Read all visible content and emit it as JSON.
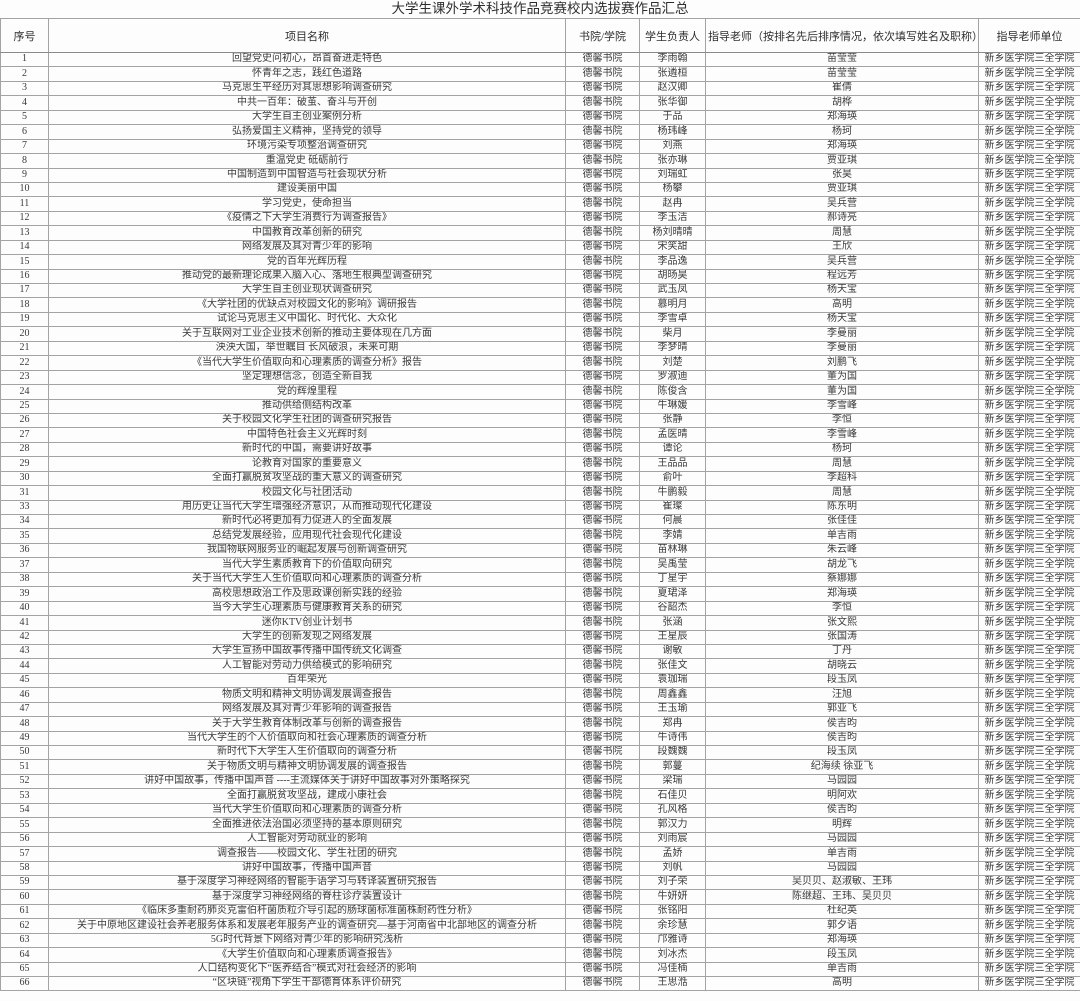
{
  "title": "大学生课外学术科技作品竞赛校内选拔赛作品汇总",
  "table": {
    "headers": {
      "serial": "序号",
      "project": "项目名称",
      "college": "书院/学院",
      "student": "学生负责人",
      "advisor": "指导老师（按排名先后排序情况，依次填写姓名及职称）",
      "unit": "指导老师单位"
    },
    "rows": [
      [
        "1",
        "回望党史问初心，昂首奋进走特色",
        "德馨书院",
        "李雨翰",
        "苗莹莹",
        "新乡医学院三全学院"
      ],
      [
        "2",
        "怀青年之志，践红色道路",
        "德馨书院",
        "张遴桓",
        "苗莹莹",
        "新乡医学院三全学院"
      ],
      [
        "3",
        "马克思生平经历对其思想影响调查研究",
        "德馨书院",
        "赵汉卿",
        "崔倩",
        "新乡医学院三全学院"
      ],
      [
        "4",
        "中共一百年：破茧、奋斗与开创",
        "德馨书院",
        "张华御",
        "胡桦",
        "新乡医学院三全学院"
      ],
      [
        "5",
        "大学生自主创业案例分析",
        "德馨书院",
        "于品",
        "郑海瑛",
        "新乡医学院三全学院"
      ],
      [
        "6",
        "弘扬爱国主义精神，坚持党的领导",
        "德馨书院",
        "杨玮峰",
        "杨珂",
        "新乡医学院三全学院"
      ],
      [
        "7",
        "环境污染专项整治调查研究",
        "德馨书院",
        "刘燕",
        "郑海瑛",
        "新乡医学院三全学院"
      ],
      [
        "8",
        "重温党史 砥砺前行",
        "德馨书院",
        "张亦琳",
        "贾亚琪",
        "新乡医学院三全学院"
      ],
      [
        "9",
        "中国制造到中国智造与社会现状分析",
        "德馨书院",
        "刘瑞虹",
        "张昊",
        "新乡医学院三全学院"
      ],
      [
        "10",
        "建设美丽中国",
        "德馨书院",
        "杨攀",
        "贾亚琪",
        "新乡医学院三全学院"
      ],
      [
        "11",
        "学习党史，使命担当",
        "德馨书院",
        "赵冉",
        "吴兵营",
        "新乡医学院三全学院"
      ],
      [
        "12",
        "《疫情之下大学生消费行为调查报告》",
        "德馨书院",
        "李玉洁",
        "郝诗亮",
        "新乡医学院三全学院"
      ],
      [
        "13",
        "中国教育改革创新的研究",
        "德馨书院",
        "杨刘晴晴",
        "周慧",
        "新乡医学院三全学院"
      ],
      [
        "14",
        "网络发展及其对青少年的影响",
        "德馨书院",
        "宋笑甜",
        "王欣",
        "新乡医学院三全学院"
      ],
      [
        "15",
        "党的百年光辉历程",
        "德馨书院",
        "李品逸",
        "吴兵营",
        "新乡医学院三全学院"
      ],
      [
        "16",
        "推动党的最新理论成果入脑入心、落地生根典型调查研究",
        "德馨书院",
        "胡旸昊",
        "程远芳",
        "新乡医学院三全学院"
      ],
      [
        "17",
        "大学生自主创业现状调查研究",
        "德馨书院",
        "武玉凤",
        "杨天宝",
        "新乡医学院三全学院"
      ],
      [
        "18",
        "《大学社团的优缺点对校园文化的影响》调研报告",
        "德馨书院",
        "慕明月",
        "高明",
        "新乡医学院三全学院"
      ],
      [
        "19",
        "试论马克思主义中国化、时代化、大众化",
        "德馨书院",
        "李雪卓",
        "杨天宝",
        "新乡医学院三全学院"
      ],
      [
        "20",
        "关于互联网对工业企业技术创新的推动主要体现在几方面",
        "德馨书院",
        "柴月",
        "李曼丽",
        "新乡医学院三全学院"
      ],
      [
        "21",
        "泱泱大国，举世瞩目 长风破浪，未来可期",
        "德馨书院",
        "李梦晴",
        "李曼丽",
        "新乡医学院三全学院"
      ],
      [
        "22",
        "《当代大学生价值取向和心理素质的调查分析》报告",
        "德馨书院",
        "刘楚",
        "刘鹏飞",
        "新乡医学院三全学院"
      ],
      [
        "23",
        "坚定理想信念，创造全新自我",
        "德馨书院",
        "罗淑迪",
        "董为国",
        "新乡医学院三全学院"
      ],
      [
        "24",
        "党的辉煌里程",
        "德馨书院",
        "陈俊含",
        "董为国",
        "新乡医学院三全学院"
      ],
      [
        "25",
        "推动供给侧结构改革",
        "德馨书院",
        "牛琳媛",
        "李雪峰",
        "新乡医学院三全学院"
      ],
      [
        "26",
        "关于校园文化学生社团的调查研究报告",
        "德馨书院",
        "张静",
        "李恒",
        "新乡医学院三全学院"
      ],
      [
        "27",
        "中国特色社会主义光辉时刻",
        "德馨书院",
        "孟医晴",
        "李雪峰",
        "新乡医学院三全学院"
      ],
      [
        "28",
        "新时代的中国，需要讲好故事",
        "德馨书院",
        "谭论",
        "杨珂",
        "新乡医学院三全学院"
      ],
      [
        "29",
        "论教育对国家的重要意义",
        "德馨书院",
        "王品品",
        "周慧",
        "新乡医学院三全学院"
      ],
      [
        "30",
        "全面打赢脱贫攻坚战的重大意义的调查研究",
        "德馨书院",
        "俞叶",
        "李超科",
        "新乡医学院三全学院"
      ],
      [
        "31",
        "校园文化与社团活动",
        "德馨书院",
        "牛鹏毅",
        "周慧",
        "新乡医学院三全学院"
      ],
      [
        "33",
        "用历史让当代大学生增强经济意识，从而推动现代化建设",
        "德馨书院",
        "崔璨",
        "陈东明",
        "新乡医学院三全学院"
      ],
      [
        "34",
        "新时代必将更加有力促进人的全面发展",
        "德馨书院",
        "何晨",
        "张佳佳",
        "新乡医学院三全学院"
      ],
      [
        "35",
        "总结党发展经验，应用现代社会现代化建设",
        "德馨书院",
        "李婧",
        "单吉雨",
        "新乡医学院三全学院"
      ],
      [
        "36",
        "我国物联网服务业的崛起发展与创新调查研究",
        "德馨书院",
        "苗林琳",
        "朱云峰",
        "新乡医学院三全学院"
      ],
      [
        "37",
        "当代大学生素质教育下的价值取向研究",
        "德馨书院",
        "吴禹莹",
        "胡龙飞",
        "新乡医学院三全学院"
      ],
      [
        "38",
        "关于当代大学生人生价值取向和心理素质的调查分析",
        "德馨书院",
        "丁星宇",
        "蔡娜娜",
        "新乡医学院三全学院"
      ],
      [
        "39",
        "高校思想政治工作及思政课创新实践的经验",
        "德馨书院",
        "夏珺泽",
        "郑海瑛",
        "新乡医学院三全学院"
      ],
      [
        "40",
        "当今大学生心理素质与健康教育关系的研究",
        "德馨书院",
        "谷韶杰",
        "李恒",
        "新乡医学院三全学院"
      ],
      [
        "41",
        "迷你KTV创业计划书",
        "德馨书院",
        "张涵",
        "张文熙",
        "新乡医学院三全学院"
      ],
      [
        "42",
        "大学生的创新发现之网络发展",
        "德馨书院",
        "王星辰",
        "张国涛",
        "新乡医学院三全学院"
      ],
      [
        "43",
        "大学生宣扬中国故事传播中国传统文化调查",
        "德馨书院",
        "谢敏",
        "丁丹",
        "新乡医学院三全学院"
      ],
      [
        "44",
        "人工智能对劳动力供给模式的影响研究",
        "德馨书院",
        "张佳文",
        "胡晓云",
        "新乡医学院三全学院"
      ],
      [
        "45",
        "百年荣光",
        "德馨书院",
        "袁珈瑞",
        "段玉凤",
        "新乡医学院三全学院"
      ],
      [
        "46",
        "物质文明和精神文明协调发展调查报告",
        "德馨书院",
        "周鑫鑫",
        "汪旭",
        "新乡医学院三全学院"
      ],
      [
        "47",
        "网络发展及其对青少年影响的调查报告",
        "德馨书院",
        "王玉瑜",
        "郭亚飞",
        "新乡医学院三全学院"
      ],
      [
        "48",
        "关于大学生教育体制改革与创新的调查报告",
        "德馨书院",
        "郑冉",
        "侯吉昀",
        "新乡医学院三全学院"
      ],
      [
        "49",
        "当代大学生的个人价值取向和社会心理素质的调查分析",
        "德馨书院",
        "牛诗伟",
        "侯吉昀",
        "新乡医学院三全学院"
      ],
      [
        "50",
        "新时代下大学生人生价值取向的调查分析",
        "德馨书院",
        "段魏魏",
        "段玉凤",
        "新乡医学院三全学院"
      ],
      [
        "51",
        "关于物质文明与精神文明协调发展的调查报告",
        "德馨书院",
        "郭蔓",
        "纪海续 徐亚飞",
        "新乡医学院三全学院"
      ],
      [
        "52",
        "讲好中国故事，传播中国声音 ----主流媒体关于讲好中国故事对外策略探究",
        "德馨书院",
        "梁瑞",
        "马园园",
        "新乡医学院三全学院"
      ],
      [
        "53",
        "全面打赢脱贫攻坚战，建成小康社会",
        "德馨书院",
        "石佳贝",
        "明阿欢",
        "新乡医学院三全学院"
      ],
      [
        "54",
        "当代大学生价值取向和心理素质的调查分析",
        "德馨书院",
        "孔风格",
        "侯吉昀",
        "新乡医学院三全学院"
      ],
      [
        "55",
        "全面推进依法治国必须坚持的基本原则研究",
        "德馨书院",
        "郭汉力",
        "明辉",
        "新乡医学院三全学院"
      ],
      [
        "56",
        "人工智能对劳动就业的影响",
        "德馨书院",
        "刘雨宸",
        "马园园",
        "新乡医学院三全学院"
      ],
      [
        "57",
        "调查报告——校园文化、学生社团的研究",
        "德馨书院",
        "孟娇",
        "单吉雨",
        "新乡医学院三全学院"
      ],
      [
        "58",
        "讲好中国故事，传播中国声音",
        "德馨书院",
        "刘帆",
        "马园园",
        "新乡医学院三全学院"
      ],
      [
        "59",
        "基于深度学习神经网络的智能手语学习与转译装置研究报告",
        "德馨书院",
        "刘子荣",
        "吴贝贝、赵淑敏、王玮",
        "新乡医学院三全学院"
      ],
      [
        "60",
        "基于深度学习神经网络的脊柱诊疗装置设计",
        "德馨书院",
        "牛妍妍",
        "陈继超、王玮、吴贝贝",
        "新乡医学院三全学院"
      ],
      [
        "61",
        "《临床多重耐药肺炎克雷伯杆菌质粒介导引起的肠球菌标准菌株耐药性分析》",
        "德馨书院",
        "张铭阳",
        "杜纪英",
        "新乡医学院三全学院"
      ],
      [
        "62",
        "关于中原地区建设社会养老服务体系和发展老年服务产业的调查研究—基于河南省中北部地区的调查分析",
        "德馨书院",
        "余珍慧",
        "郭夕语",
        "新乡医学院三全学院"
      ],
      [
        "63",
        "5G时代背景下网络对青少年的影响研究浅析",
        "德馨书院",
        "邝雅诗",
        "郑海瑛",
        "新乡医学院三全学院"
      ],
      [
        "64",
        "《大学生价值取向和心理素质调查报告》",
        "德馨书院",
        "刘冰杰",
        "段玉凤",
        "新乡医学院三全学院"
      ],
      [
        "65",
        "人口结构变化下“医养结合”模式对社会经济的影响",
        "德馨书院",
        "冯佳楠",
        "单吉雨",
        "新乡医学院三全学院"
      ],
      [
        "66",
        "“区块链”视角下学生干部德育体系评价研究",
        "德馨书院",
        "王思湉",
        "高明",
        "新乡医学院三全学院"
      ]
    ]
  }
}
